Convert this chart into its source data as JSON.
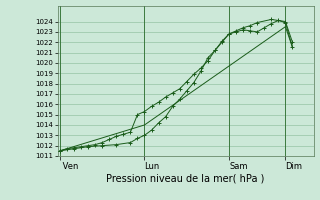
{
  "xlabel": "Pression niveau de la mer( hPa )",
  "bg_color": "#cce8d8",
  "grid_color": "#88bb99",
  "line_color": "#1a5c1a",
  "ylim": [
    1011,
    1025
  ],
  "yticks": [
    1011,
    1012,
    1013,
    1014,
    1015,
    1016,
    1017,
    1018,
    1019,
    1020,
    1021,
    1022,
    1023,
    1024
  ],
  "day_labels": [
    " Ven",
    "Lun",
    "Sam",
    "Dim"
  ],
  "day_positions": [
    0,
    36,
    72,
    96
  ],
  "xlim": [
    -1,
    108
  ],
  "series1_x": [
    0,
    3,
    6,
    9,
    12,
    15,
    18,
    21,
    24,
    27,
    30,
    33,
    36,
    39,
    42,
    45,
    48,
    51,
    54,
    57,
    60,
    63,
    66,
    69,
    72,
    75,
    78,
    81,
    84,
    87,
    90,
    93,
    96,
    99
  ],
  "series1_y": [
    1011.5,
    1011.7,
    1011.8,
    1011.9,
    1012.0,
    1012.1,
    1012.3,
    1012.6,
    1012.9,
    1013.1,
    1013.3,
    1015.0,
    1015.3,
    1015.8,
    1016.2,
    1016.7,
    1017.1,
    1017.5,
    1018.2,
    1018.9,
    1019.5,
    1020.2,
    1021.2,
    1022.1,
    1022.8,
    1023.0,
    1023.2,
    1023.1,
    1023.0,
    1023.4,
    1023.8,
    1024.1,
    1023.9,
    1021.5
  ],
  "series2_x": [
    0,
    6,
    12,
    18,
    24,
    30,
    33,
    36,
    39,
    42,
    45,
    48,
    51,
    54,
    57,
    60,
    63,
    66,
    69,
    72,
    75,
    78,
    81,
    84,
    90,
    96,
    99
  ],
  "series2_y": [
    1011.5,
    1011.7,
    1011.9,
    1012.0,
    1012.1,
    1012.3,
    1012.7,
    1013.0,
    1013.5,
    1014.2,
    1014.8,
    1015.8,
    1016.5,
    1017.3,
    1018.1,
    1019.2,
    1020.5,
    1021.2,
    1022.0,
    1022.8,
    1023.1,
    1023.4,
    1023.6,
    1023.9,
    1024.2,
    1024.0,
    1022.0
  ],
  "series3_x": [
    0,
    36,
    96,
    99
  ],
  "series3_y": [
    1011.5,
    1014.0,
    1023.5,
    1021.5
  ],
  "vline_color": "#2d6e2d",
  "vline_positions": [
    0,
    36,
    72,
    96
  ]
}
